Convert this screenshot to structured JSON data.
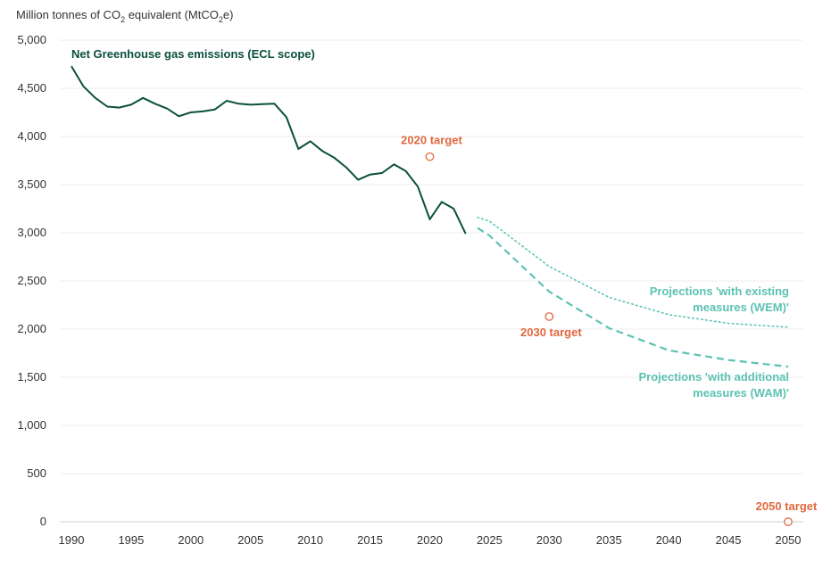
{
  "chart_data": {
    "type": "line",
    "ylabel_parts": {
      "pre": "Million tonnes of CO",
      "sub1": "2",
      "mid": " equivalent (MtCO",
      "sub2": "2",
      "post": "e)"
    },
    "ylim": [
      0,
      5000
    ],
    "xlim": [
      1990,
      2050
    ],
    "y_ticks": [
      0,
      500,
      1000,
      1500,
      2000,
      2500,
      3000,
      3500,
      4000,
      4500,
      5000
    ],
    "y_tick_labels": [
      "0",
      "500",
      "1,000",
      "1,500",
      "2,000",
      "2,500",
      "3,000",
      "3,500",
      "4,000",
      "4,500",
      "5,000"
    ],
    "x_ticks": [
      1990,
      1995,
      2000,
      2005,
      2010,
      2015,
      2020,
      2025,
      2030,
      2035,
      2040,
      2045,
      2050
    ],
    "x_tick_labels": [
      "1990",
      "1995",
      "2000",
      "2005",
      "2010",
      "2015",
      "2020",
      "2025",
      "2030",
      "2035",
      "2040",
      "2045",
      "2050"
    ],
    "grid": true,
    "colors": {
      "historical": "#0b4f3f",
      "projection": "#5cc2b3",
      "target": "#e0683f",
      "grid": "#ececec",
      "axis": "#cfcfcf"
    },
    "series": [
      {
        "key": "historical",
        "name": "Net Greenhouse gas emissions (ECL scope)",
        "style": "solid",
        "x": [
          1990,
          1991,
          1992,
          1993,
          1994,
          1995,
          1996,
          1997,
          1998,
          1999,
          2000,
          2001,
          2002,
          2003,
          2004,
          2005,
          2006,
          2007,
          2008,
          2009,
          2010,
          2011,
          2012,
          2013,
          2014,
          2015,
          2016,
          2017,
          2018,
          2019,
          2020,
          2021,
          2022,
          2023
        ],
        "y": [
          4730,
          4520,
          4400,
          4310,
          4300,
          4330,
          4400,
          4340,
          4290,
          4210,
          4250,
          4260,
          4280,
          4370,
          4340,
          4330,
          4335,
          4340,
          4200,
          3870,
          3950,
          3850,
          3780,
          3680,
          3550,
          3605,
          3620,
          3710,
          3640,
          3480,
          3140,
          3320,
          3250,
          2990
        ]
      },
      {
        "key": "wem",
        "name": "Projections 'with existing measures (WEM)'",
        "style": "dotted",
        "x": [
          2024,
          2025,
          2030,
          2035,
          2040,
          2045,
          2050
        ],
        "y": [
          3160,
          3120,
          2650,
          2330,
          2150,
          2060,
          2020
        ]
      },
      {
        "key": "wam",
        "name": "Projections 'with additional measures (WAM)'",
        "style": "dashed",
        "x": [
          2024,
          2025,
          2030,
          2035,
          2040,
          2045,
          2050
        ],
        "y": [
          3050,
          2970,
          2390,
          2010,
          1780,
          1680,
          1610
        ]
      }
    ],
    "targets": [
      {
        "label": "2020 target",
        "x": 2020,
        "y": 3790
      },
      {
        "label": "2030 target",
        "x": 2030,
        "y": 2130
      },
      {
        "label": "2050 target",
        "x": 2050,
        "y": 0
      }
    ],
    "annotations": {
      "historical": "Net Greenhouse gas emissions (ECL scope)",
      "wem_line1": "Projections 'with existing",
      "wem_line2": "measures (WEM)'",
      "wam_line1": "Projections 'with additional",
      "wam_line2": "measures (WAM)'"
    }
  }
}
